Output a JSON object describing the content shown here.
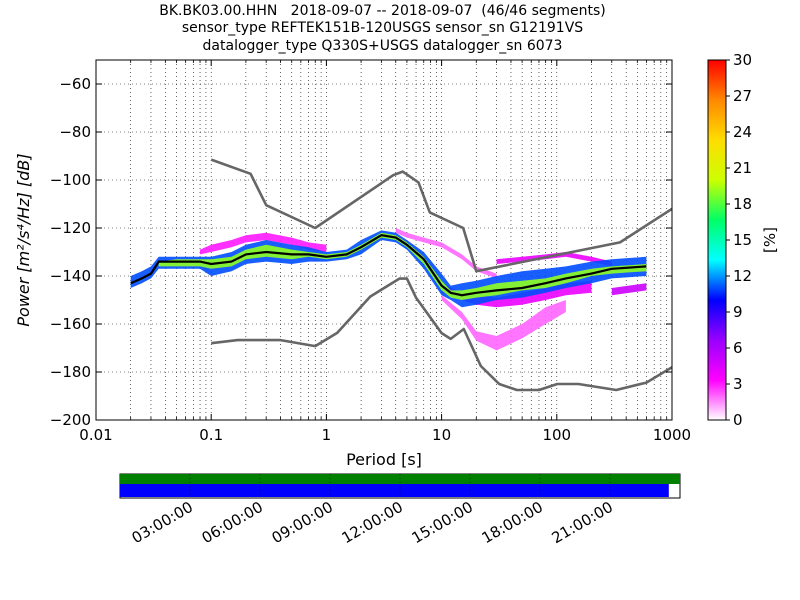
{
  "chart_data": {
    "type": "heatmap",
    "title_lines": [
      "BK.BK03.00.HHN   2018-09-07 -- 2018-09-07  (46/46 segments)",
      "sensor_type REFTEK151B-120USGS sensor_sn G12191VS",
      "datalogger_type Q330S+USGS datalogger_sn 6073"
    ],
    "xlabel": "Period [s]",
    "ylabel": "Power [m²/s⁴/Hz] [dB]",
    "x_scale": "log",
    "xlim": [
      0.01,
      1000
    ],
    "ylim": [
      -200,
      -50
    ],
    "x_ticks": [
      {
        "value": 0.01,
        "label": "0.01"
      },
      {
        "value": 0.1,
        "label": "0.1"
      },
      {
        "value": 1,
        "label": "1"
      },
      {
        "value": 10,
        "label": "10"
      },
      {
        "value": 100,
        "label": "100"
      },
      {
        "value": 1000,
        "label": "1000"
      }
    ],
    "y_ticks": [
      -60,
      -80,
      -100,
      -120,
      -140,
      -160,
      -180,
      -200
    ],
    "grid": true,
    "colorbar": {
      "label": "[%]",
      "range": [
        0,
        30
      ],
      "ticks": [
        0,
        3,
        6,
        9,
        12,
        15,
        18,
        21,
        24,
        27,
        30
      ],
      "colormap": [
        "#ffffff",
        "#ff00ff",
        "#9900ff",
        "#0000ff",
        "#00ffff",
        "#00ff66",
        "#ccff00",
        "#ffdd00",
        "#ff8800",
        "#ff0000"
      ]
    },
    "noise_model_high": {
      "period": [
        0.1,
        0.22,
        0.3,
        0.8,
        3.8,
        4.6,
        6.3,
        7.9,
        15.4,
        20,
        354,
        1000
      ],
      "power": [
        -91.5,
        -97.4,
        -110.5,
        -120,
        -98,
        -96.5,
        -101,
        -113.5,
        -120,
        -138,
        -126,
        -112
      ]
    },
    "noise_model_low": {
      "period": [
        0.1,
        0.17,
        0.4,
        0.8,
        1.24,
        2.4,
        4.3,
        5,
        6,
        10,
        12,
        15.6,
        21.9,
        31.6,
        45,
        70,
        101,
        154,
        328,
        600,
        1000
      ],
      "power": [
        -168,
        -166.7,
        -166.7,
        -169.2,
        -163.7,
        -148.6,
        -141.1,
        -141.1,
        -149,
        -163.8,
        -166.2,
        -162.1,
        -177.5,
        -185,
        -187.5,
        -187.5,
        -185,
        -185,
        -187.5,
        -184.4,
        -178
      ]
    },
    "mode_curve": {
      "period": [
        0.02,
        0.025,
        0.03,
        0.035,
        0.05,
        0.08,
        0.1,
        0.15,
        0.2,
        0.3,
        0.5,
        0.7,
        1,
        1.5,
        2,
        3,
        4,
        5,
        7,
        10,
        12,
        15,
        20,
        30,
        50,
        80,
        120,
        200,
        300,
        600
      ],
      "power": [
        -143,
        -141,
        -139,
        -134,
        -134,
        -134,
        -135,
        -134,
        -131,
        -130,
        -131,
        -131,
        -132,
        -131,
        -128,
        -123,
        -124,
        -127,
        -133,
        -144,
        -147,
        -148,
        -147,
        -146,
        -145,
        -143,
        -141,
        -139,
        -137,
        -136
      ]
    },
    "psd_bands": [
      {
        "period": [
          0.02,
          0.025,
          0.03,
          0.035,
          0.05,
          0.08,
          0.1,
          0.15,
          0.2,
          0.3,
          0.5,
          0.7,
          1,
          1.5,
          2,
          3,
          4,
          5,
          7,
          10,
          12,
          15,
          20,
          30,
          50,
          80,
          120,
          200,
          300,
          600
        ],
        "upper": [
          -140,
          -138,
          -136,
          -132,
          -132,
          -132,
          -132,
          -130,
          -127,
          -125,
          -127,
          -128,
          -130,
          -129,
          -125,
          -121,
          -122,
          -125,
          -130,
          -139,
          -144,
          -143,
          -142,
          -140,
          -138,
          -137,
          -136,
          -134,
          -133,
          -132
        ],
        "lower": [
          -145,
          -143,
          -141,
          -137,
          -137,
          -137,
          -140,
          -138,
          -135,
          -134,
          -135,
          -134,
          -134,
          -133,
          -131,
          -125,
          -126,
          -129,
          -137,
          -148,
          -150,
          -153,
          -152,
          -150,
          -149,
          -147,
          -145,
          -143,
          -141,
          -140
        ],
        "percent": 11
      },
      {
        "period": [
          0.035,
          0.05,
          0.08,
          0.1,
          0.15,
          0.2,
          0.3,
          0.5,
          0.7,
          1,
          1.5,
          2,
          3,
          4,
          5,
          7,
          10,
          12,
          15,
          20,
          30,
          50,
          80,
          120,
          200,
          300,
          600
        ],
        "upper": [
          -134,
          -133,
          -133,
          -133,
          -132,
          -129,
          -127,
          -129,
          -130,
          -131,
          -130,
          -127,
          -122,
          -123,
          -126,
          -132,
          -142,
          -146,
          -146,
          -145,
          -143,
          -142,
          -141,
          -139,
          -137,
          -136,
          -135
        ],
        "lower": [
          -136,
          -136,
          -136,
          -137,
          -136,
          -133,
          -132,
          -133,
          -132,
          -133,
          -132,
          -129,
          -124,
          -125,
          -128,
          -135,
          -146,
          -149,
          -150,
          -149,
          -148,
          -146,
          -145,
          -143,
          -140,
          -139,
          -138
        ],
        "percent": 19
      }
    ],
    "outlier_bands": [
      {
        "period": [
          10,
          15,
          20,
          30,
          50,
          80,
          120
        ],
        "upper": [
          -148,
          -155,
          -163,
          -165,
          -160,
          -153,
          -150
        ],
        "lower": [
          -150,
          -158,
          -167,
          -171,
          -166,
          -160,
          -155
        ],
        "percent": 2
      },
      {
        "period": [
          10,
          15,
          20,
          30,
          50,
          80,
          120,
          200
        ],
        "upper": [
          -143,
          -147,
          -148,
          -149,
          -147,
          -145,
          -143,
          -142
        ],
        "lower": [
          -147,
          -150,
          -152,
          -153,
          -152,
          -150,
          -148,
          -147
        ],
        "percent": 4
      },
      {
        "period": [
          0.08,
          0.1,
          0.15,
          0.2,
          0.3,
          0.5,
          0.7,
          1
        ],
        "upper": [
          -129,
          -127,
          -125,
          -123,
          -122,
          -124,
          -126,
          -127
        ],
        "lower": [
          -131,
          -130,
          -128,
          -126,
          -125,
          -127,
          -129,
          -130
        ],
        "percent": 3
      },
      {
        "period": [
          4,
          5,
          7,
          10,
          15,
          20,
          30
        ],
        "upper": [
          -120,
          -122,
          -124,
          -126,
          -131,
          -136,
          -139
        ],
        "lower": [
          -122,
          -124,
          -126,
          -128,
          -133,
          -138,
          -141
        ],
        "percent": 2
      },
      {
        "period": [
          30,
          50,
          80,
          120,
          200,
          300
        ],
        "upper": [
          -133,
          -132,
          -131,
          -130,
          -132,
          -134
        ],
        "lower": [
          -135,
          -134,
          -133,
          -132,
          -134,
          -136
        ],
        "percent": 4
      },
      {
        "period": [
          300,
          600
        ],
        "upper": [
          -145,
          -143
        ],
        "lower": [
          -148,
          -146
        ],
        "percent": 5
      }
    ]
  },
  "timeline": {
    "tick_labels": [
      "03:00:00",
      "06:00:00",
      "09:00:00",
      "12:00:00",
      "15:00:00",
      "18:00:00",
      "21:00:00"
    ],
    "coverage_fraction": 0.98,
    "top_bar_color": "#008000",
    "bottom_bar_color": "#0000ff"
  },
  "colors": {
    "noise_model": "#666666",
    "mode_curve": "#000000"
  }
}
